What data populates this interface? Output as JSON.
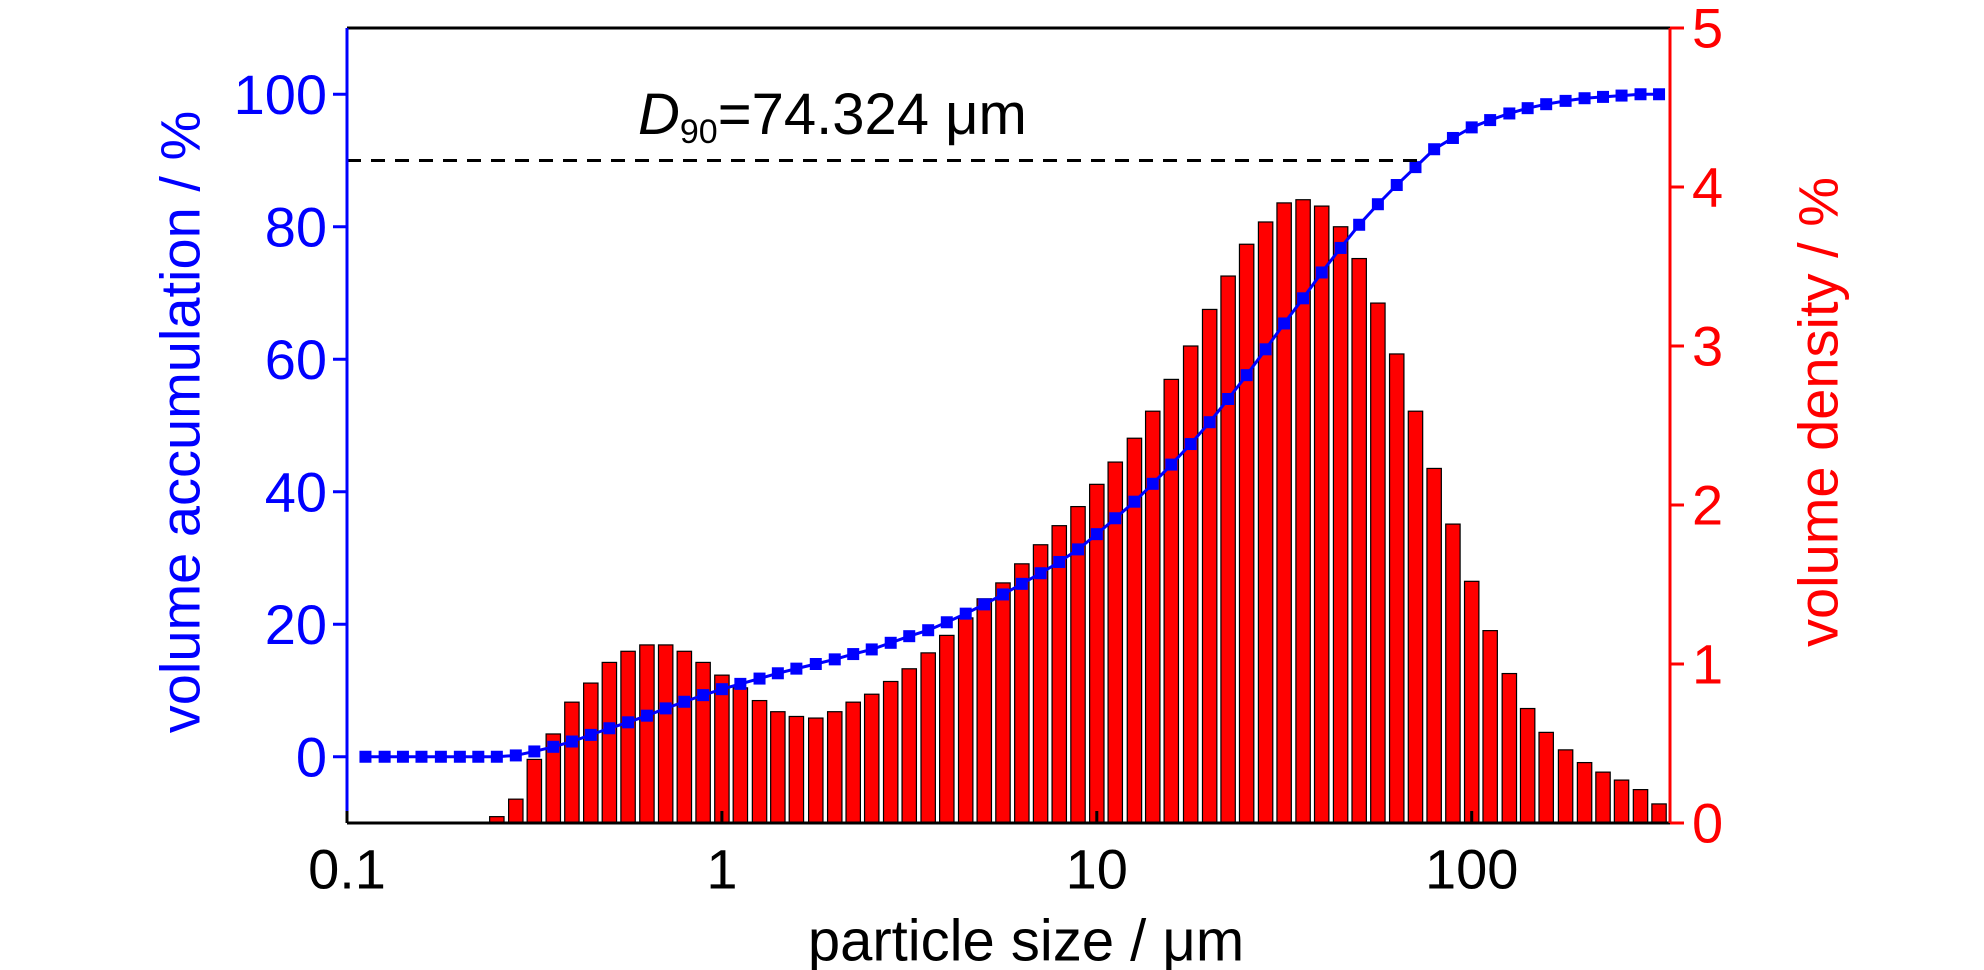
{
  "chart_data": {
    "type": "combo",
    "xlabel": "particle size / μm",
    "ylabel": "volume accumulation / %",
    "y2label": "volume density / %",
    "xscale": "log",
    "xlim": [
      0.1,
      338
    ],
    "xticks": [
      0.1,
      1,
      10,
      100
    ],
    "ylim": [
      -10,
      110
    ],
    "yticks": [
      0,
      20,
      40,
      60,
      80,
      100
    ],
    "y2lim": [
      0,
      5
    ],
    "y2ticks": [
      0,
      1,
      2,
      3,
      4,
      5
    ],
    "ycolor": "#0000ff",
    "y2color": "#ff0000",
    "x": [
      0.112,
      0.126,
      0.141,
      0.158,
      0.178,
      0.2,
      0.224,
      0.251,
      0.282,
      0.316,
      0.355,
      0.398,
      0.447,
      0.501,
      0.562,
      0.631,
      0.708,
      0.794,
      0.891,
      1.0,
      1.12,
      1.26,
      1.41,
      1.58,
      1.78,
      2.0,
      2.24,
      2.51,
      2.82,
      3.16,
      3.55,
      3.98,
      4.47,
      5.01,
      5.62,
      6.31,
      7.08,
      7.94,
      8.91,
      10.0,
      11.2,
      12.6,
      14.1,
      15.8,
      17.8,
      20.0,
      22.4,
      25.1,
      28.2,
      31.6,
      35.5,
      39.8,
      44.7,
      50.1,
      56.2,
      63.1,
      70.8,
      79.4,
      89.1,
      100,
      112,
      126,
      141,
      158,
      178,
      200,
      224,
      251,
      282,
      316
    ],
    "series": [
      {
        "type": "bar",
        "axis": "y2",
        "color": "#ff0000",
        "values": [
          0,
          0,
          0,
          0,
          0,
          0,
          0,
          0.04,
          0.15,
          0.4,
          0.56,
          0.76,
          0.88,
          1.01,
          1.08,
          1.12,
          1.12,
          1.08,
          1.01,
          0.93,
          0.85,
          0.77,
          0.7,
          0.67,
          0.66,
          0.7,
          0.76,
          0.81,
          0.89,
          0.97,
          1.07,
          1.18,
          1.29,
          1.41,
          1.51,
          1.63,
          1.75,
          1.87,
          1.99,
          2.13,
          2.27,
          2.42,
          2.59,
          2.79,
          3.0,
          3.23,
          3.44,
          3.64,
          3.78,
          3.9,
          3.92,
          3.88,
          3.75,
          3.55,
          3.27,
          2.95,
          2.59,
          2.23,
          1.88,
          1.52,
          1.21,
          0.94,
          0.72,
          0.57,
          0.46,
          0.38,
          0.32,
          0.27,
          0.21,
          0.12
        ]
      },
      {
        "type": "line",
        "axis": "y",
        "color": "#0000ff",
        "values": [
          0,
          0,
          0,
          0,
          0,
          0,
          0,
          0,
          0.2,
          0.8,
          1.5,
          2.3,
          3.3,
          4.3,
          5.2,
          6.2,
          7.3,
          8.3,
          9.3,
          10.2,
          11.0,
          11.8,
          12.6,
          13.3,
          14.0,
          14.7,
          15.5,
          16.2,
          17.2,
          18.2,
          19.1,
          20.3,
          21.6,
          23.0,
          24.5,
          26.1,
          27.7,
          29.4,
          31.3,
          33.6,
          36.0,
          38.5,
          41.2,
          44.1,
          47.2,
          50.5,
          54.0,
          57.6,
          61.5,
          65.4,
          69.2,
          73.1,
          76.8,
          80.3,
          83.4,
          86.3,
          89.0,
          91.7,
          93.4,
          95.0,
          96.1,
          97.1,
          97.9,
          98.5,
          99.0,
          99.4,
          99.6,
          99.8,
          100.0,
          100.0
        ]
      }
    ],
    "annotation": {
      "label": "D",
      "subscript": "90",
      "text": "=74.324 μm",
      "x": 74.324,
      "y": 90
    }
  }
}
